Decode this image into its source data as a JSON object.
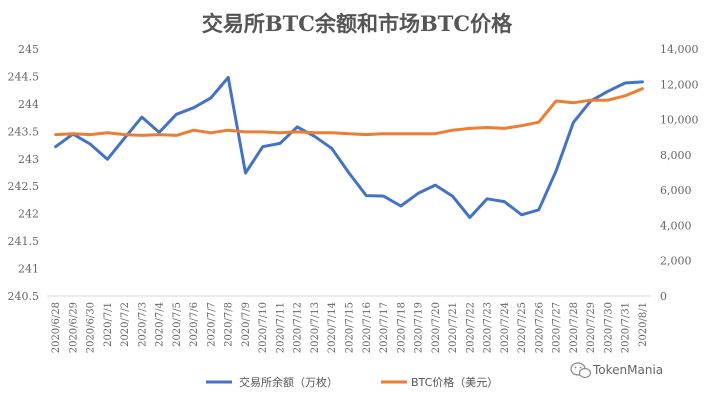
{
  "chart_data": {
    "type": "line",
    "title": "交易所BTC余额和市场BTC价格",
    "categories": [
      "2020/6/28",
      "2020/6/29",
      "2020/6/30",
      "2020/7/1",
      "2020/7/2",
      "2020/7/3",
      "2020/7/4",
      "2020/7/5",
      "2020/7/6",
      "2020/7/7",
      "2020/7/8",
      "2020/7/9",
      "2020/7/10",
      "2020/7/11",
      "2020/7/12",
      "2020/7/13",
      "2020/7/14",
      "2020/7/15",
      "2020/7/16",
      "2020/7/17",
      "2020/7/18",
      "2020/7/19",
      "2020/7/20",
      "2020/7/21",
      "2020/7/22",
      "2020/7/23",
      "2020/7/24",
      "2020/7/25",
      "2020/7/26",
      "2020/7/27",
      "2020/7/28",
      "2020/7/29",
      "2020/7/30",
      "2020/7/31",
      "2020/8/1"
    ],
    "series": [
      {
        "name": "交易所余额（万枚）",
        "axis": "left",
        "color": "#4472C4",
        "values": [
          243.22,
          243.45,
          243.27,
          242.99,
          243.38,
          243.76,
          243.48,
          243.81,
          243.93,
          244.11,
          244.48,
          242.74,
          243.22,
          243.28,
          243.58,
          243.41,
          243.19,
          242.74,
          242.33,
          242.32,
          242.14,
          242.37,
          242.52,
          242.32,
          241.93,
          242.27,
          242.22,
          241.98,
          242.07,
          242.78,
          243.66,
          244.05,
          244.23,
          244.38,
          244.4
        ]
      },
      {
        "name": "BTC价格（美元）",
        "axis": "right",
        "color": "#ED7D31",
        "values": [
          9150,
          9200,
          9150,
          9250,
          9150,
          9100,
          9150,
          9100,
          9400,
          9250,
          9400,
          9300,
          9300,
          9250,
          9300,
          9250,
          9250,
          9200,
          9150,
          9200,
          9200,
          9200,
          9200,
          9400,
          9500,
          9550,
          9500,
          9650,
          9850,
          11050,
          10950,
          11100,
          11100,
          11350,
          11750
        ]
      }
    ],
    "y_left": {
      "min": 240.5,
      "max": 245,
      "ticks": [
        "240.5",
        "241",
        "241.5",
        "242",
        "242.5",
        "243",
        "243.5",
        "244",
        "244.5",
        "245"
      ]
    },
    "y_right": {
      "min": 0,
      "max": 14000,
      "ticks": [
        "0",
        "2,000",
        "4,000",
        "6,000",
        "8,000",
        "10,000",
        "12,000",
        "14,000"
      ]
    },
    "grid": false,
    "legend_position": "bottom",
    "legend": [
      "交易所余额（万枚）",
      "BTC价格（美元）"
    ]
  },
  "watermark": {
    "text": "TokenMania",
    "icon": "wechat-icon"
  }
}
